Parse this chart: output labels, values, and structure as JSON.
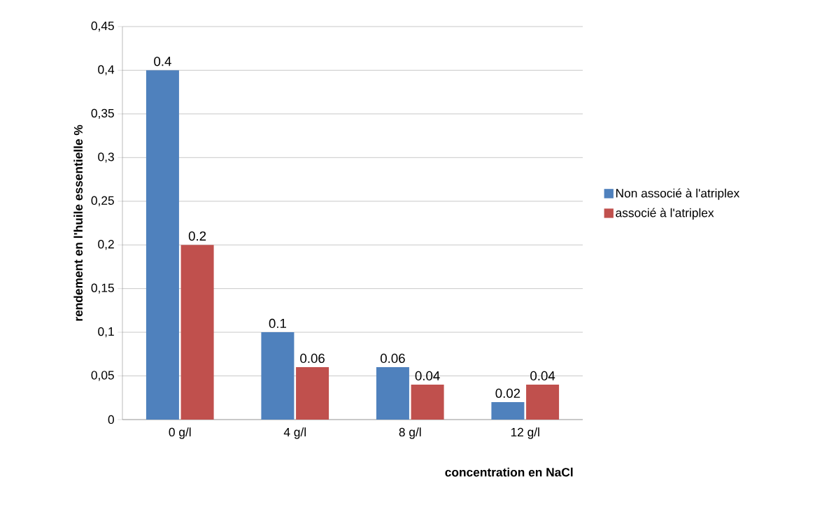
{
  "chart_data": {
    "type": "bar",
    "xlabel": "concentration en NaCl",
    "ylabel": "rendement en l'huile essentielle %",
    "categories": [
      "0 g/l",
      "4 g/l",
      "8 g/l",
      "12 g/l"
    ],
    "series": [
      {
        "name": "Non associé à l'atriplex",
        "color": "#4f81bd",
        "values": [
          0.4,
          0.1,
          0.06,
          0.02
        ]
      },
      {
        "name": "associé à l'atriplex",
        "color": "#c0504d",
        "values": [
          0.2,
          0.06,
          0.04,
          0.04
        ]
      }
    ],
    "ylim": [
      0,
      0.45
    ],
    "yticks": [
      0,
      {
        "value": 0.05,
        "label": "0,05"
      },
      {
        "value": 0.1,
        "label": "0,1"
      },
      {
        "value": 0.15,
        "label": "0,15"
      },
      {
        "value": 0.2,
        "label": "0,2"
      },
      {
        "value": 0.25,
        "label": "0,25"
      },
      {
        "value": 0.3,
        "label": "0,3"
      },
      {
        "value": 0.35,
        "label": "0,35"
      },
      {
        "value": 0.4,
        "label": "0,4"
      },
      {
        "value": 0.45,
        "label": "0,45"
      }
    ],
    "grid": "y",
    "legend": "right",
    "data_labels": true
  }
}
